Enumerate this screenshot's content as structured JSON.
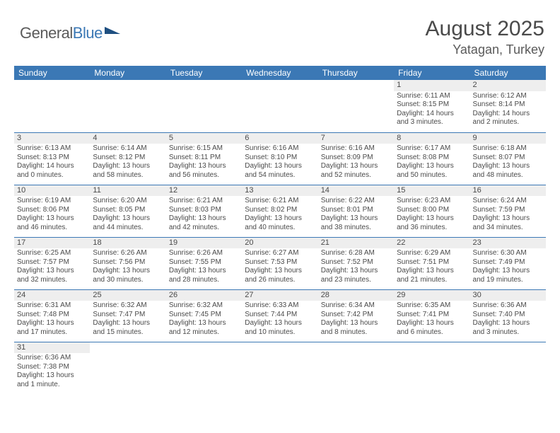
{
  "logo": {
    "text1": "General",
    "text2": "Blue"
  },
  "title": "August 2025",
  "location": "Yatagan, Turkey",
  "colors": {
    "header_bg": "#3b78b5",
    "header_text": "#ffffff",
    "text": "#4a4a4a",
    "shaded_bg": "#eeeeee",
    "row_border": "#3b78b5"
  },
  "dayNames": [
    "Sunday",
    "Monday",
    "Tuesday",
    "Wednesday",
    "Thursday",
    "Friday",
    "Saturday"
  ],
  "weeks": [
    [
      {
        "n": "",
        "sr": "",
        "ss": "",
        "dl": ""
      },
      {
        "n": "",
        "sr": "",
        "ss": "",
        "dl": ""
      },
      {
        "n": "",
        "sr": "",
        "ss": "",
        "dl": ""
      },
      {
        "n": "",
        "sr": "",
        "ss": "",
        "dl": ""
      },
      {
        "n": "",
        "sr": "",
        "ss": "",
        "dl": ""
      },
      {
        "n": "1",
        "sr": "Sunrise: 6:11 AM",
        "ss": "Sunset: 8:15 PM",
        "dl": "Daylight: 14 hours and 3 minutes."
      },
      {
        "n": "2",
        "sr": "Sunrise: 6:12 AM",
        "ss": "Sunset: 8:14 PM",
        "dl": "Daylight: 14 hours and 2 minutes."
      }
    ],
    [
      {
        "n": "3",
        "sr": "Sunrise: 6:13 AM",
        "ss": "Sunset: 8:13 PM",
        "dl": "Daylight: 14 hours and 0 minutes."
      },
      {
        "n": "4",
        "sr": "Sunrise: 6:14 AM",
        "ss": "Sunset: 8:12 PM",
        "dl": "Daylight: 13 hours and 58 minutes."
      },
      {
        "n": "5",
        "sr": "Sunrise: 6:15 AM",
        "ss": "Sunset: 8:11 PM",
        "dl": "Daylight: 13 hours and 56 minutes."
      },
      {
        "n": "6",
        "sr": "Sunrise: 6:16 AM",
        "ss": "Sunset: 8:10 PM",
        "dl": "Daylight: 13 hours and 54 minutes."
      },
      {
        "n": "7",
        "sr": "Sunrise: 6:16 AM",
        "ss": "Sunset: 8:09 PM",
        "dl": "Daylight: 13 hours and 52 minutes."
      },
      {
        "n": "8",
        "sr": "Sunrise: 6:17 AM",
        "ss": "Sunset: 8:08 PM",
        "dl": "Daylight: 13 hours and 50 minutes."
      },
      {
        "n": "9",
        "sr": "Sunrise: 6:18 AM",
        "ss": "Sunset: 8:07 PM",
        "dl": "Daylight: 13 hours and 48 minutes."
      }
    ],
    [
      {
        "n": "10",
        "sr": "Sunrise: 6:19 AM",
        "ss": "Sunset: 8:06 PM",
        "dl": "Daylight: 13 hours and 46 minutes."
      },
      {
        "n": "11",
        "sr": "Sunrise: 6:20 AM",
        "ss": "Sunset: 8:05 PM",
        "dl": "Daylight: 13 hours and 44 minutes."
      },
      {
        "n": "12",
        "sr": "Sunrise: 6:21 AM",
        "ss": "Sunset: 8:03 PM",
        "dl": "Daylight: 13 hours and 42 minutes."
      },
      {
        "n": "13",
        "sr": "Sunrise: 6:21 AM",
        "ss": "Sunset: 8:02 PM",
        "dl": "Daylight: 13 hours and 40 minutes."
      },
      {
        "n": "14",
        "sr": "Sunrise: 6:22 AM",
        "ss": "Sunset: 8:01 PM",
        "dl": "Daylight: 13 hours and 38 minutes."
      },
      {
        "n": "15",
        "sr": "Sunrise: 6:23 AM",
        "ss": "Sunset: 8:00 PM",
        "dl": "Daylight: 13 hours and 36 minutes."
      },
      {
        "n": "16",
        "sr": "Sunrise: 6:24 AM",
        "ss": "Sunset: 7:59 PM",
        "dl": "Daylight: 13 hours and 34 minutes."
      }
    ],
    [
      {
        "n": "17",
        "sr": "Sunrise: 6:25 AM",
        "ss": "Sunset: 7:57 PM",
        "dl": "Daylight: 13 hours and 32 minutes."
      },
      {
        "n": "18",
        "sr": "Sunrise: 6:26 AM",
        "ss": "Sunset: 7:56 PM",
        "dl": "Daylight: 13 hours and 30 minutes."
      },
      {
        "n": "19",
        "sr": "Sunrise: 6:26 AM",
        "ss": "Sunset: 7:55 PM",
        "dl": "Daylight: 13 hours and 28 minutes."
      },
      {
        "n": "20",
        "sr": "Sunrise: 6:27 AM",
        "ss": "Sunset: 7:53 PM",
        "dl": "Daylight: 13 hours and 26 minutes."
      },
      {
        "n": "21",
        "sr": "Sunrise: 6:28 AM",
        "ss": "Sunset: 7:52 PM",
        "dl": "Daylight: 13 hours and 23 minutes."
      },
      {
        "n": "22",
        "sr": "Sunrise: 6:29 AM",
        "ss": "Sunset: 7:51 PM",
        "dl": "Daylight: 13 hours and 21 minutes."
      },
      {
        "n": "23",
        "sr": "Sunrise: 6:30 AM",
        "ss": "Sunset: 7:49 PM",
        "dl": "Daylight: 13 hours and 19 minutes."
      }
    ],
    [
      {
        "n": "24",
        "sr": "Sunrise: 6:31 AM",
        "ss": "Sunset: 7:48 PM",
        "dl": "Daylight: 13 hours and 17 minutes."
      },
      {
        "n": "25",
        "sr": "Sunrise: 6:32 AM",
        "ss": "Sunset: 7:47 PM",
        "dl": "Daylight: 13 hours and 15 minutes."
      },
      {
        "n": "26",
        "sr": "Sunrise: 6:32 AM",
        "ss": "Sunset: 7:45 PM",
        "dl": "Daylight: 13 hours and 12 minutes."
      },
      {
        "n": "27",
        "sr": "Sunrise: 6:33 AM",
        "ss": "Sunset: 7:44 PM",
        "dl": "Daylight: 13 hours and 10 minutes."
      },
      {
        "n": "28",
        "sr": "Sunrise: 6:34 AM",
        "ss": "Sunset: 7:42 PM",
        "dl": "Daylight: 13 hours and 8 minutes."
      },
      {
        "n": "29",
        "sr": "Sunrise: 6:35 AM",
        "ss": "Sunset: 7:41 PM",
        "dl": "Daylight: 13 hours and 6 minutes."
      },
      {
        "n": "30",
        "sr": "Sunrise: 6:36 AM",
        "ss": "Sunset: 7:40 PM",
        "dl": "Daylight: 13 hours and 3 minutes."
      }
    ],
    [
      {
        "n": "31",
        "sr": "Sunrise: 6:36 AM",
        "ss": "Sunset: 7:38 PM",
        "dl": "Daylight: 13 hours and 1 minute."
      },
      {
        "n": "",
        "sr": "",
        "ss": "",
        "dl": ""
      },
      {
        "n": "",
        "sr": "",
        "ss": "",
        "dl": ""
      },
      {
        "n": "",
        "sr": "",
        "ss": "",
        "dl": ""
      },
      {
        "n": "",
        "sr": "",
        "ss": "",
        "dl": ""
      },
      {
        "n": "",
        "sr": "",
        "ss": "",
        "dl": ""
      },
      {
        "n": "",
        "sr": "",
        "ss": "",
        "dl": ""
      }
    ]
  ]
}
